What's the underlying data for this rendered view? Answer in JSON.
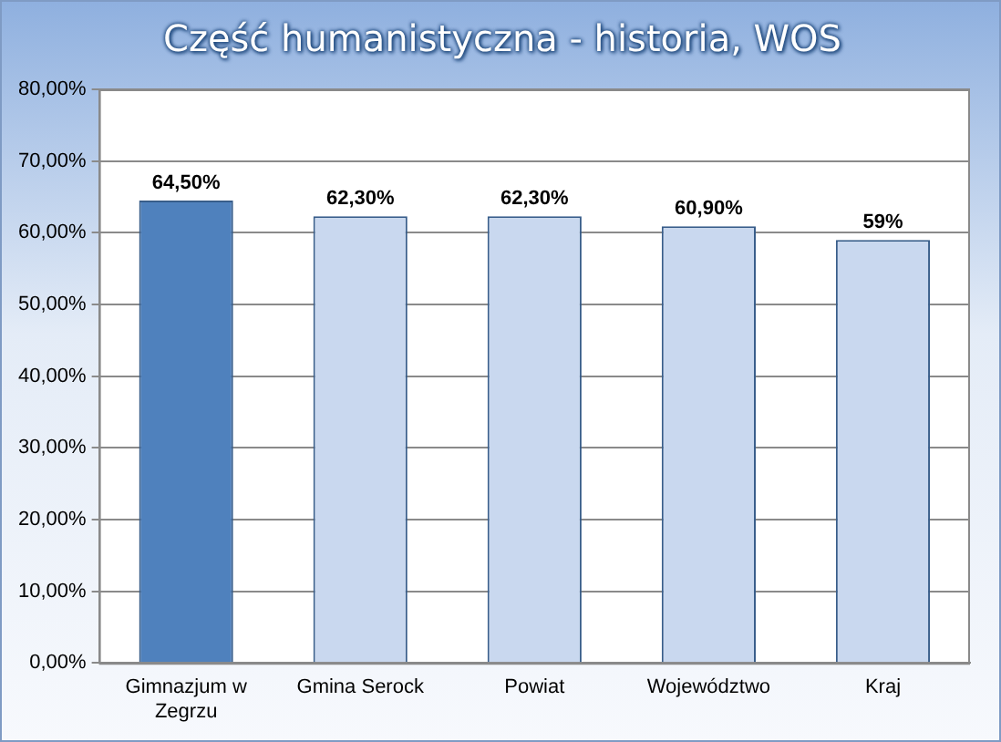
{
  "chart_data": {
    "type": "bar",
    "title": "Część humanistyczna - historia, WOS",
    "categories": [
      "Gimnazjum w Zegrzu",
      "Gmina Serock",
      "Powiat",
      "Województwo",
      "Kraj"
    ],
    "values": [
      64.5,
      62.3,
      62.3,
      60.9,
      59
    ],
    "colors": [
      "#4f81bd",
      "#c9d8ef",
      "#c9d8ef",
      "#c9d8ef",
      "#c9d8ef"
    ],
    "value_labels": [
      "64,50%",
      "62,30%",
      "62,30%",
      "60,90%",
      "59%"
    ],
    "ylim": [
      0,
      80
    ],
    "yticks": [
      {
        "value": 0,
        "label": "0,00%"
      },
      {
        "value": 10,
        "label": "10,00%"
      },
      {
        "value": 20,
        "label": "20,00%"
      },
      {
        "value": 30,
        "label": "30,00%"
      },
      {
        "value": 40,
        "label": "40,00%"
      },
      {
        "value": 50,
        "label": "50,00%"
      },
      {
        "value": 60,
        "label": "60,00%"
      },
      {
        "value": 70,
        "label": "70,00%"
      },
      {
        "value": 80,
        "label": "80,00%"
      }
    ],
    "grid": "y",
    "legend": false
  }
}
